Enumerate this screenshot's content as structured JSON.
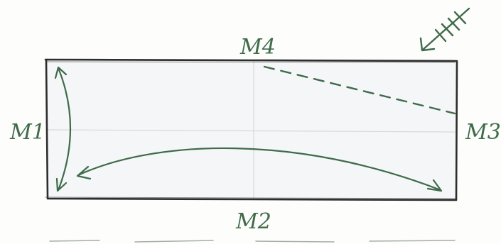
{
  "labels": {
    "top": "M4",
    "left": "M1",
    "right": "M3",
    "bottom": "M2"
  },
  "colors": {
    "ink": "#3f6b4a",
    "pencil": "#2f2f2f",
    "paper": "#f3f5f7",
    "guide": "#d8dde0"
  },
  "icons": {
    "corner": "wind-arrow-icon"
  }
}
